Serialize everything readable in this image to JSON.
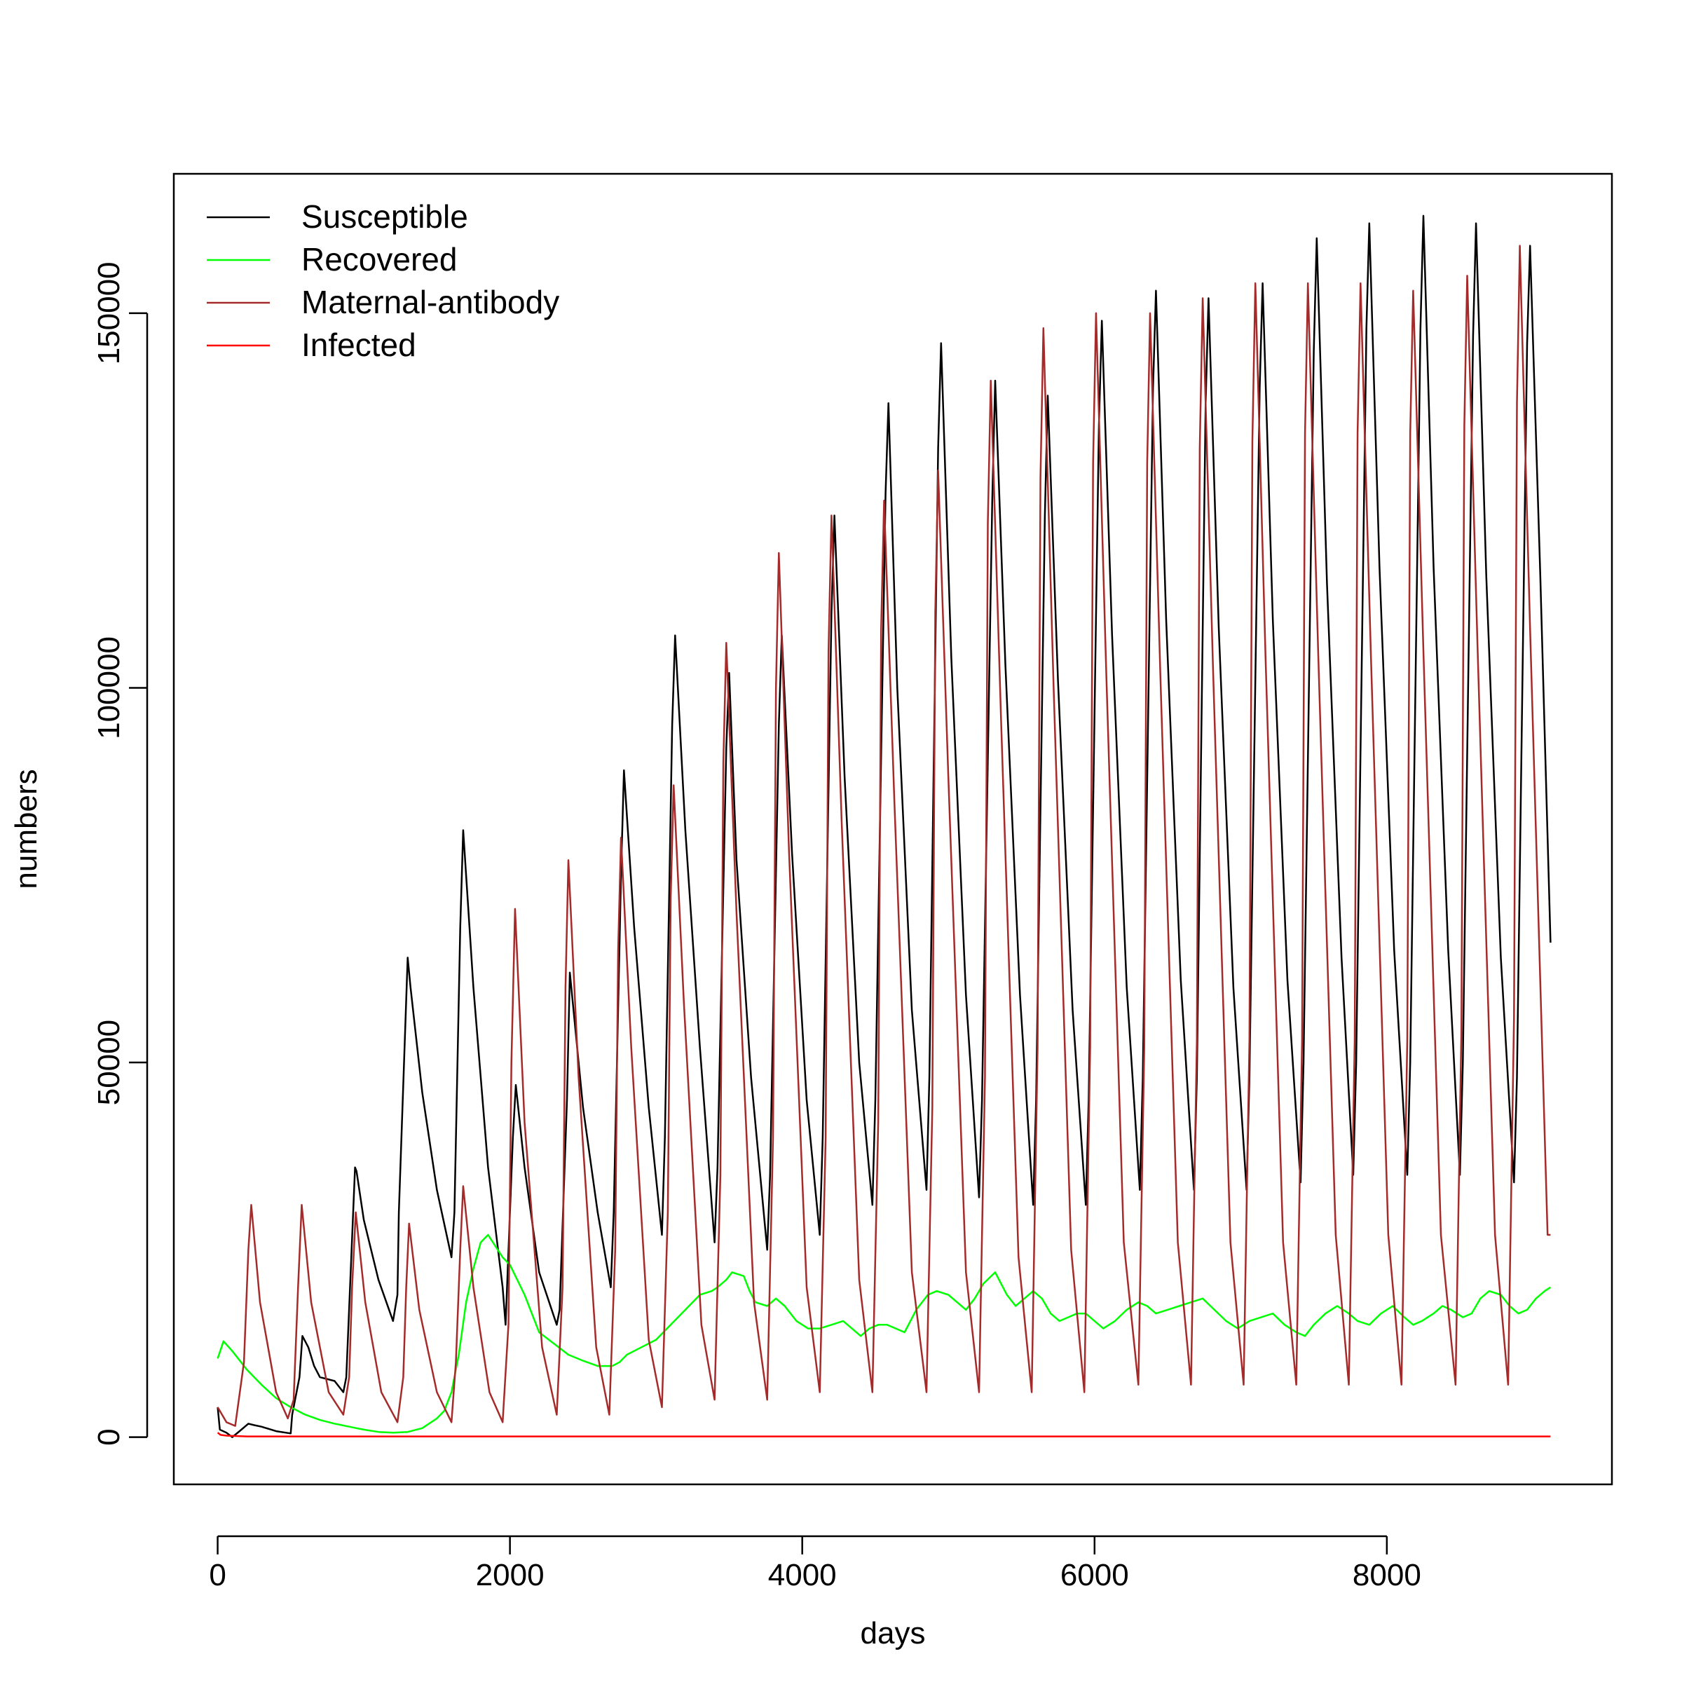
{
  "chart_data": {
    "type": "line",
    "title": "",
    "xlabel": "days",
    "ylabel": "numbers",
    "xlim": [
      -300,
      9540
    ],
    "ylim": [
      -6300,
      168600
    ],
    "x_ticks": [
      0,
      2000,
      4000,
      6000,
      8000
    ],
    "x_tick_labels": [
      "0",
      "2000",
      "4000",
      "6000",
      "8000"
    ],
    "y_ticks": [
      0,
      50000,
      100000,
      150000
    ],
    "y_tick_labels": [
      "0",
      "50000",
      "100000",
      "150000"
    ],
    "grid": false,
    "legend_position": "top-left",
    "series": [
      {
        "name": "Susceptible",
        "color": "#000000",
        "x": [
          0,
          15,
          60,
          100,
          150,
          210,
          250,
          300,
          400,
          500,
          510,
          560,
          580,
          620,
          660,
          700,
          800,
          860,
          880,
          940,
          950,
          1000,
          1100,
          1200,
          1230,
          1240,
          1300,
          1320,
          1400,
          1500,
          1600,
          1620,
          1660,
          1680,
          1750,
          1850,
          1950,
          1970,
          2020,
          2040,
          2100,
          2200,
          2320,
          2340,
          2390,
          2410,
          2500,
          2600,
          2690,
          2710,
          2760,
          2780,
          2850,
          2950,
          3040,
          3060,
          3110,
          3130,
          3200,
          3300,
          3400,
          3420,
          3480,
          3500,
          3550,
          3650,
          3760,
          3780,
          3840,
          3860,
          3930,
          4030,
          4120,
          4140,
          4200,
          4220,
          4290,
          4390,
          4480,
          4500,
          4570,
          4590,
          4650,
          4750,
          4850,
          4870,
          4930,
          4950,
          5020,
          5120,
          5210,
          5230,
          5300,
          5320,
          5390,
          5490,
          5580,
          5600,
          5660,
          5680,
          5750,
          5850,
          5940,
          5960,
          6030,
          6050,
          6120,
          6220,
          6310,
          6330,
          6400,
          6420,
          6490,
          6590,
          6680,
          6700,
          6760,
          6780,
          6850,
          6950,
          7040,
          7060,
          7130,
          7150,
          7220,
          7320,
          7410,
          7430,
          7500,
          7520,
          7590,
          7690,
          7770,
          7790,
          7860,
          7880,
          7950,
          8050,
          8140,
          8160,
          8230,
          8250,
          8320,
          8420,
          8500,
          8520,
          8590,
          8610,
          8680,
          8780,
          8870,
          8890,
          8960,
          8980,
          9050,
          9120
        ],
        "y": [
          4000,
          1000,
          600,
          0,
          800,
          1800,
          1600,
          1400,
          800,
          500,
          3000,
          8000,
          13500,
          12000,
          9500,
          8000,
          7500,
          6000,
          8000,
          36000,
          35500,
          29000,
          21000,
          15500,
          19000,
          30000,
          64000,
          60000,
          46000,
          33000,
          24000,
          30000,
          68000,
          81000,
          60000,
          36000,
          20000,
          15000,
          40000,
          47000,
          36000,
          22000,
          15000,
          17000,
          45000,
          62000,
          44000,
          30000,
          20000,
          30000,
          75000,
          89000,
          68000,
          44000,
          27000,
          40000,
          95000,
          107000,
          81000,
          52000,
          26000,
          36000,
          92000,
          102000,
          77000,
          48000,
          25000,
          35000,
          95000,
          107000,
          78000,
          45000,
          27000,
          40000,
          110000,
          123000,
          88000,
          50000,
          31000,
          45000,
          126000,
          138000,
          100000,
          57000,
          33000,
          48000,
          132000,
          146000,
          104000,
          59000,
          32000,
          45000,
          125000,
          141000,
          103000,
          59000,
          31000,
          45000,
          123000,
          139000,
          101000,
          57000,
          31000,
          45000,
          135000,
          149000,
          107000,
          60000,
          33000,
          48000,
          140000,
          153000,
          109000,
          61000,
          33000,
          48000,
          138000,
          152000,
          108000,
          60000,
          33000,
          48000,
          140000,
          154000,
          109000,
          61000,
          34000,
          50000,
          145000,
          160000,
          114000,
          64000,
          35000,
          50000,
          148000,
          162000,
          116000,
          65000,
          35000,
          50000,
          148000,
          163000,
          116000,
          65000,
          35000,
          50000,
          147000,
          162000,
          115000,
          64000,
          34000,
          48000,
          146000,
          159000,
          115000,
          66000
        ]
      },
      {
        "name": "Recovered",
        "color": "#00ff00",
        "x": [
          0,
          40,
          100,
          200,
          300,
          400,
          500,
          600,
          700,
          800,
          900,
          1000,
          1100,
          1200,
          1300,
          1400,
          1500,
          1550,
          1600,
          1650,
          1700,
          1750,
          1800,
          1850,
          1900,
          1950,
          2000,
          2100,
          2200,
          2300,
          2400,
          2500,
          2600,
          2700,
          2750,
          2800,
          2900,
          3000,
          3100,
          3200,
          3300,
          3380,
          3420,
          3480,
          3520,
          3600,
          3640,
          3680,
          3760,
          3820,
          3880,
          3960,
          4040,
          4120,
          4200,
          4280,
          4340,
          4400,
          4460,
          4520,
          4580,
          4640,
          4700,
          4780,
          4860,
          4920,
          5000,
          5060,
          5120,
          5180,
          5240,
          5320,
          5400,
          5460,
          5520,
          5580,
          5640,
          5700,
          5760,
          5820,
          5880,
          5940,
          6000,
          6060,
          6140,
          6220,
          6300,
          6360,
          6420,
          6500,
          6580,
          6660,
          6740,
          6820,
          6900,
          6980,
          7060,
          7140,
          7220,
          7300,
          7380,
          7440,
          7500,
          7580,
          7660,
          7740,
          7800,
          7880,
          7960,
          8040,
          8120,
          8180,
          8240,
          8320,
          8380,
          8440,
          8520,
          8580,
          8640,
          8700,
          8780,
          8840,
          8900,
          8960,
          9020,
          9080,
          9120
        ],
        "y": [
          10500,
          12800,
          11500,
          9000,
          7000,
          5200,
          4000,
          3000,
          2300,
          1800,
          1400,
          1000,
          700,
          600,
          700,
          1200,
          2500,
          3500,
          6000,
          11000,
          18000,
          22500,
          26000,
          27000,
          25500,
          24000,
          23000,
          19000,
          14000,
          12500,
          11000,
          10200,
          9500,
          9500,
          10000,
          11000,
          12000,
          13000,
          15000,
          17000,
          19000,
          19500,
          20000,
          21000,
          22000,
          21500,
          19500,
          18000,
          17500,
          18500,
          17500,
          15500,
          14500,
          14500,
          15000,
          15500,
          14500,
          13500,
          14500,
          15000,
          15000,
          14500,
          14000,
          17000,
          19000,
          19500,
          19000,
          18000,
          17000,
          18500,
          20500,
          22000,
          19000,
          17500,
          18500,
          19500,
          18500,
          16500,
          15500,
          16000,
          16500,
          16500,
          15500,
          14500,
          15500,
          17000,
          18000,
          17500,
          16500,
          17000,
          17500,
          18000,
          18500,
          17000,
          15500,
          14500,
          15500,
          16000,
          16500,
          15000,
          14000,
          13500,
          15000,
          16500,
          17500,
          16500,
          15500,
          15000,
          16500,
          17500,
          16000,
          15000,
          15500,
          16500,
          17500,
          17000,
          16000,
          16500,
          18500,
          19500,
          19000,
          17500,
          16500,
          17000,
          18500,
          19500,
          20000
        ]
      },
      {
        "name": "Maternal-antibody",
        "color": "#a52a2a",
        "x": [
          0,
          60,
          120,
          180,
          210,
          230,
          290,
          400,
          480,
          520,
          550,
          575,
          640,
          760,
          860,
          900,
          920,
          945,
          1010,
          1120,
          1230,
          1270,
          1290,
          1310,
          1380,
          1500,
          1600,
          1630,
          1660,
          1680,
          1750,
          1860,
          1950,
          1990,
          2010,
          2035,
          2100,
          2220,
          2320,
          2360,
          2380,
          2400,
          2470,
          2590,
          2680,
          2720,
          2740,
          2760,
          2830,
          2950,
          3040,
          3080,
          3100,
          3120,
          3190,
          3310,
          3400,
          3440,
          3460,
          3480,
          3550,
          3670,
          3760,
          3800,
          3820,
          3840,
          3910,
          4030,
          4120,
          4160,
          4180,
          4200,
          4270,
          4390,
          4480,
          4520,
          4540,
          4560,
          4630,
          4750,
          4850,
          4890,
          4910,
          4930,
          5000,
          5120,
          5210,
          5250,
          5270,
          5290,
          5360,
          5480,
          5570,
          5610,
          5630,
          5650,
          5720,
          5840,
          5930,
          5970,
          5990,
          6010,
          6080,
          6200,
          6300,
          6340,
          6360,
          6380,
          6450,
          6570,
          6660,
          6700,
          6720,
          6740,
          6810,
          6930,
          7020,
          7060,
          7080,
          7100,
          7170,
          7290,
          7380,
          7420,
          7440,
          7460,
          7530,
          7650,
          7740,
          7780,
          7800,
          7820,
          7890,
          8010,
          8100,
          8140,
          8160,
          8180,
          8250,
          8370,
          8470,
          8510,
          8530,
          8550,
          8620,
          8740,
          8830,
          8870,
          8890,
          8910,
          8980,
          9100,
          9120
        ],
        "y": [
          4000,
          2000,
          1500,
          10000,
          25000,
          31000,
          18000,
          6000,
          2500,
          5000,
          20000,
          31000,
          18000,
          6000,
          3000,
          8000,
          20000,
          30000,
          18000,
          6000,
          2000,
          8000,
          20000,
          28500,
          17000,
          6000,
          2000,
          10000,
          25000,
          33500,
          20000,
          6000,
          2000,
          15000,
          50000,
          70500,
          42000,
          12000,
          3000,
          20000,
          60000,
          77000,
          48000,
          12000,
          3000,
          25000,
          65000,
          80000,
          52000,
          13000,
          4000,
          30000,
          72000,
          87000,
          58000,
          15000,
          5000,
          35000,
          90000,
          106000,
          70000,
          18000,
          5000,
          40000,
          100000,
          118000,
          78000,
          20000,
          6000,
          40000,
          105000,
          123000,
          82000,
          21000,
          6000,
          42000,
          108000,
          125000,
          85000,
          22000,
          6000,
          44000,
          110000,
          129000,
          88000,
          22000,
          6000,
          48000,
          122000,
          141000,
          96000,
          24000,
          6000,
          52000,
          128000,
          148000,
          100000,
          25000,
          6000,
          52000,
          130000,
          150000,
          102000,
          26000,
          7000,
          52000,
          130000,
          150000,
          102000,
          26000,
          7000,
          53000,
          132000,
          152000,
          103000,
          26000,
          7000,
          53000,
          133000,
          154000,
          104000,
          26000,
          7000,
          53000,
          134000,
          154000,
          105000,
          27000,
          7000,
          53000,
          134000,
          154000,
          105000,
          27000,
          7000,
          53000,
          134000,
          153000,
          105000,
          27000,
          7000,
          54000,
          135000,
          155000,
          106000,
          27000,
          7000,
          56000,
          138000,
          159000,
          108000,
          27000,
          27000
        ]
      },
      {
        "name": "Infected",
        "color": "#ff0000",
        "x": [
          0,
          20,
          60,
          200,
          1000,
          2000,
          4000,
          6000,
          8000,
          9120
        ],
        "y": [
          600,
          300,
          200,
          100,
          100,
          100,
          100,
          100,
          100,
          100
        ]
      }
    ]
  }
}
